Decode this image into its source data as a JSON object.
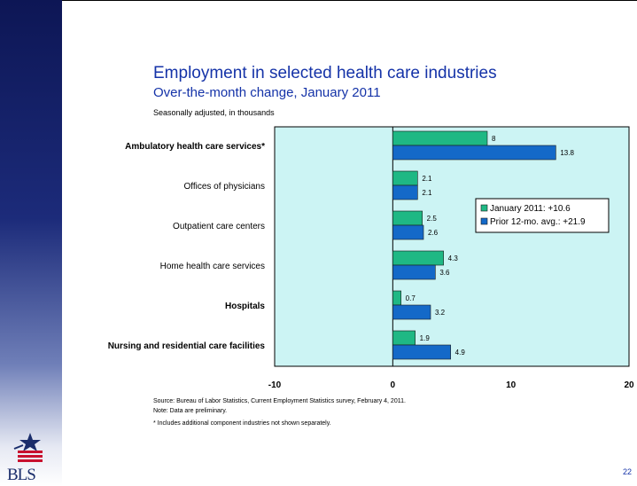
{
  "header": {
    "title": "Employment in selected health care industries",
    "subtitle": "Over-the-month change, January 2011",
    "unit_note": "Seasonally adjusted, in thousands"
  },
  "notes": {
    "source": "Source:  Bureau of Labor Statistics, Current Employment Statistics survey, February 4, 2011.",
    "preliminary": "Note: Data are preliminary.",
    "footnote": "* Includes additional component industries not shown separately."
  },
  "page_number": "22",
  "logo": {
    "text": "BLS"
  },
  "colors": {
    "plot_background": "#ccf4f4",
    "series_jan": "#1fb884",
    "series_avg": "#1469c8",
    "title_blue": "#1533a8",
    "sidebar_navy": "#1c2b7a"
  },
  "chart_data": {
    "type": "bar",
    "orientation": "horizontal",
    "categories": [
      "Ambulatory health care services*",
      "Offices of physicians",
      "Outpatient care centers",
      "Home health care services",
      "Hospitals",
      "Nursing and residential care facilities"
    ],
    "bold_categories": [
      true,
      false,
      false,
      false,
      true,
      true
    ],
    "series": [
      {
        "name": "January 2011: +10.6",
        "values": [
          8,
          2.1,
          2.5,
          4.3,
          0.7,
          1.9
        ]
      },
      {
        "name": "Prior 12-mo. avg.: +21.9",
        "values": [
          13.8,
          2.1,
          2.6,
          3.6,
          3.2,
          4.9
        ]
      }
    ],
    "xlim": [
      -10,
      20
    ],
    "xticks": [
      -10,
      0,
      10,
      20
    ],
    "xtick_labels": [
      "-10",
      "0",
      "10",
      "20"
    ],
    "grid": false,
    "legend_position": "right"
  }
}
